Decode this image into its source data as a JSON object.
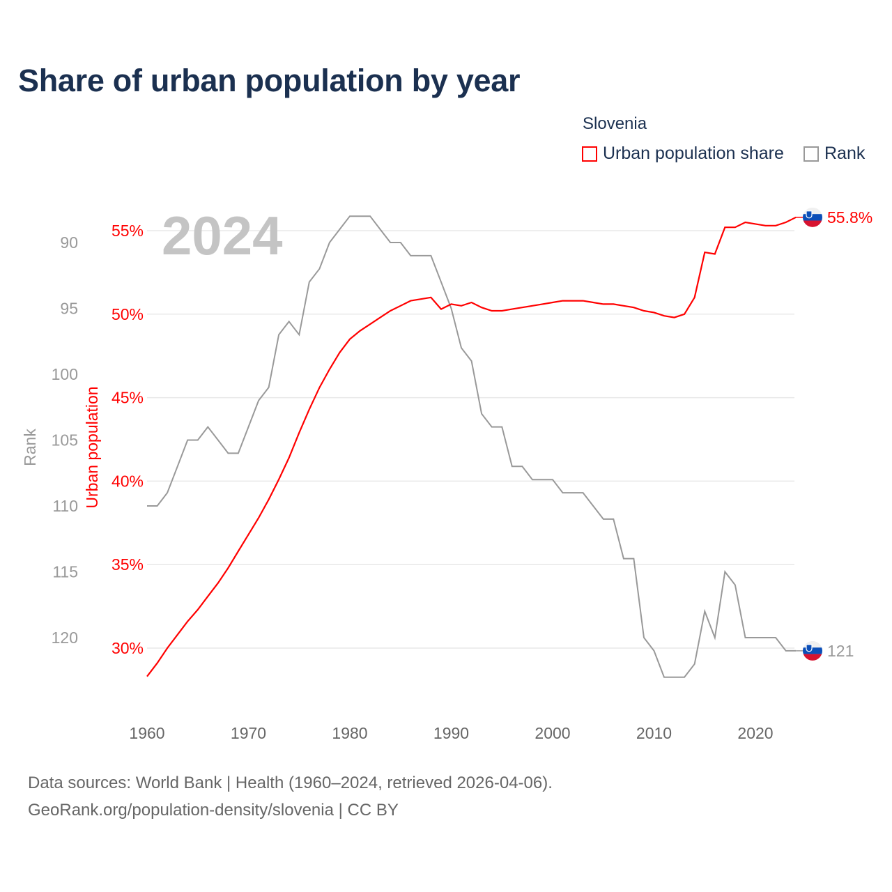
{
  "title": "Share of urban population by year",
  "legend": {
    "title": "Slovenia",
    "items": [
      {
        "label": "Urban population share",
        "color": "#ff0000"
      },
      {
        "label": "Rank",
        "color": "#999999"
      }
    ]
  },
  "footer": {
    "line1": "Data sources: World Bank | Health (1960–2024, retrieved 2026-04-06).",
    "line2": "GeoRank.org/population-density/slovenia | CC BY"
  },
  "chart_data": {
    "type": "line",
    "title": "Share of urban population by year",
    "year_watermark": "2024",
    "xlabel": "",
    "x_ticks": [
      "1960",
      "1970",
      "1980",
      "1990",
      "2000",
      "2010",
      "2020"
    ],
    "xlim": [
      1960,
      2024
    ],
    "y_left_outer": {
      "label": "Rank",
      "ticks": [
        "90",
        "95",
        "100",
        "105",
        "110",
        "115",
        "120"
      ],
      "ylim_reversed": [
        90,
        120
      ]
    },
    "y_left_inner": {
      "label": "Urban population",
      "ticks": [
        "55%",
        "50%",
        "45%",
        "40%",
        "35%",
        "30%"
      ],
      "ylim": [
        30,
        55
      ]
    },
    "grid": true,
    "legend_position": "top-right",
    "x": [
      1960,
      1961,
      1962,
      1963,
      1964,
      1965,
      1966,
      1967,
      1968,
      1969,
      1970,
      1971,
      1972,
      1973,
      1974,
      1975,
      1976,
      1977,
      1978,
      1979,
      1980,
      1981,
      1982,
      1983,
      1984,
      1985,
      1986,
      1987,
      1988,
      1989,
      1990,
      1991,
      1992,
      1993,
      1994,
      1995,
      1996,
      1997,
      1998,
      1999,
      2000,
      2001,
      2002,
      2003,
      2004,
      2005,
      2006,
      2007,
      2008,
      2009,
      2010,
      2011,
      2012,
      2013,
      2014,
      2015,
      2016,
      2017,
      2018,
      2019,
      2020,
      2021,
      2022,
      2023,
      2024
    ],
    "series": [
      {
        "name": "Urban population share",
        "unit": "%",
        "color": "#ff0000",
        "values": [
          28.3,
          29.1,
          30.0,
          30.8,
          31.6,
          32.3,
          33.1,
          33.9,
          34.8,
          35.8,
          36.8,
          37.8,
          38.9,
          40.1,
          41.4,
          42.9,
          44.3,
          45.6,
          46.7,
          47.7,
          48.5,
          49.0,
          49.4,
          49.8,
          50.2,
          50.5,
          50.8,
          50.9,
          51.0,
          50.3,
          50.6,
          50.5,
          50.7,
          50.4,
          50.2,
          50.2,
          50.3,
          50.4,
          50.5,
          50.6,
          50.7,
          50.8,
          50.8,
          50.8,
          50.7,
          50.6,
          50.6,
          50.5,
          50.4,
          50.2,
          50.1,
          49.9,
          49.8,
          50.0,
          51.0,
          53.7,
          53.6,
          55.2,
          55.2,
          55.5,
          55.4,
          55.3,
          55.3,
          55.5,
          55.8
        ],
        "end_label": "55.8%"
      },
      {
        "name": "Rank",
        "color": "#999999",
        "values": [
          110,
          110,
          109,
          107,
          105,
          105,
          104,
          105,
          106,
          106,
          104,
          102,
          101,
          97,
          96,
          97,
          93,
          92,
          90,
          89,
          88,
          88,
          88,
          89,
          90,
          90,
          91,
          91,
          91,
          93,
          95,
          98,
          99,
          103,
          104,
          104,
          107,
          107,
          108,
          108,
          108,
          109,
          109,
          109,
          110,
          111,
          111,
          114,
          114,
          120,
          121,
          123,
          123,
          123,
          122,
          118,
          120,
          115,
          116,
          120,
          120,
          120,
          120,
          121,
          121
        ],
        "end_label": "121"
      }
    ]
  }
}
